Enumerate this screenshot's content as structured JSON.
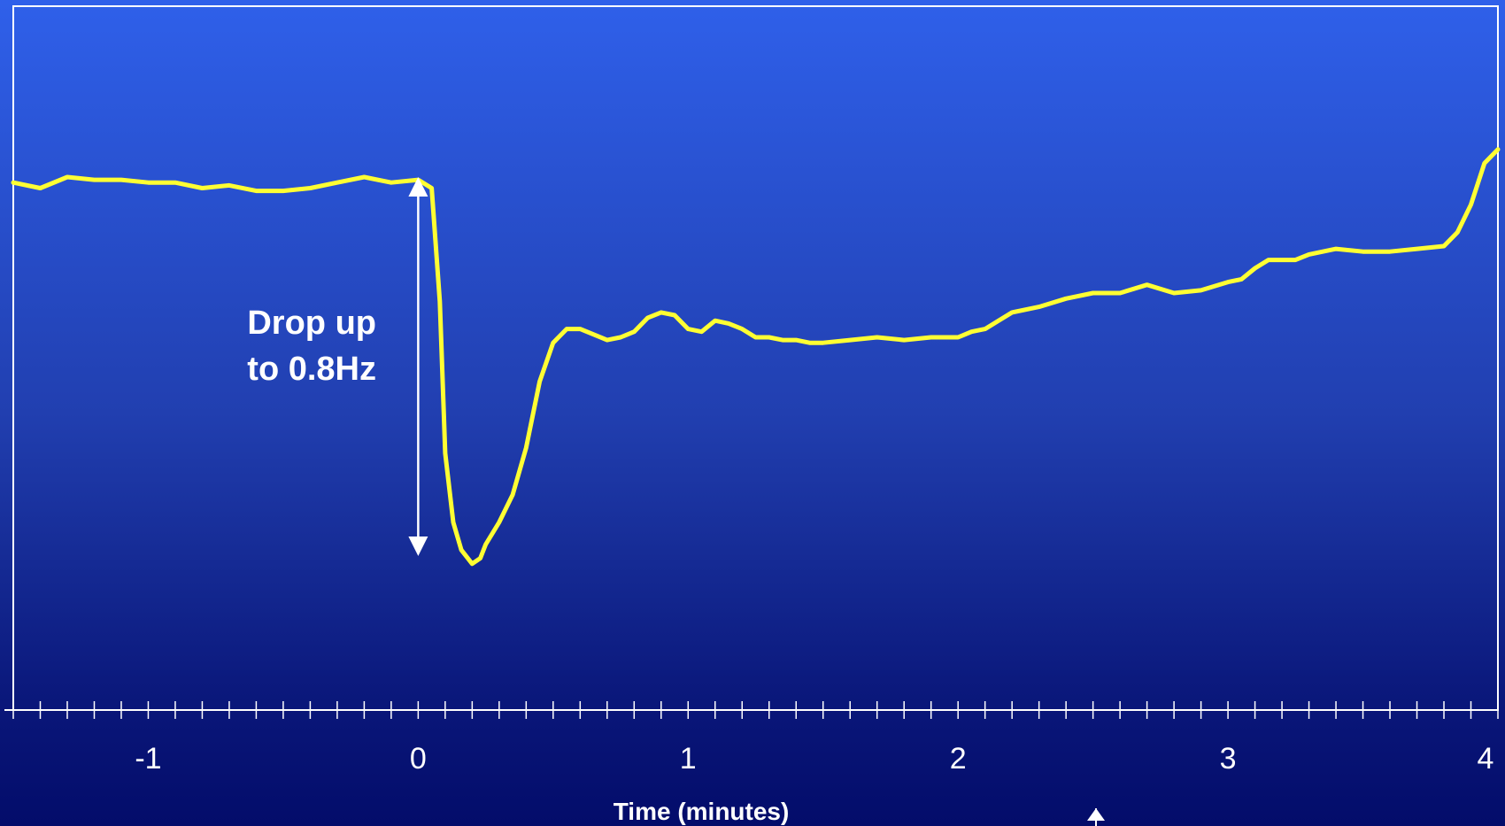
{
  "chart_data": {
    "type": "line",
    "title": "",
    "xlabel": "Time (minutes)",
    "ylabel": "",
    "xlim": [
      -1.5,
      4.0
    ],
    "x_ticks": [
      "-1",
      "0",
      "1",
      "2",
      "3",
      "4"
    ],
    "y_axis_shown": false,
    "grid": false,
    "legend": "none",
    "series": [
      {
        "color": "#ffff33",
        "x": [
          -1.5,
          -1.4,
          -1.3,
          -1.2,
          -1.1,
          -1.0,
          -0.9,
          -0.8,
          -0.7,
          -0.6,
          -0.5,
          -0.4,
          -0.3,
          -0.2,
          -0.1,
          0.0,
          0.05,
          0.08,
          0.1,
          0.13,
          0.16,
          0.2,
          0.23,
          0.25,
          0.3,
          0.35,
          0.4,
          0.45,
          0.5,
          0.55,
          0.6,
          0.65,
          0.7,
          0.75,
          0.8,
          0.85,
          0.9,
          0.95,
          1.0,
          1.05,
          1.1,
          1.15,
          1.2,
          1.25,
          1.3,
          1.35,
          1.4,
          1.45,
          1.5,
          1.6,
          1.7,
          1.8,
          1.9,
          2.0,
          2.05,
          2.1,
          2.15,
          2.2,
          2.3,
          2.4,
          2.5,
          2.6,
          2.7,
          2.8,
          2.9,
          3.0,
          3.05,
          3.1,
          3.15,
          3.2,
          3.25,
          3.3,
          3.4,
          3.5,
          3.6,
          3.7,
          3.8,
          3.85,
          3.9,
          3.95,
          4.0
        ],
        "y": [
          0.02,
          0.04,
          0.0,
          0.01,
          0.01,
          0.02,
          0.02,
          0.04,
          0.03,
          0.05,
          0.05,
          0.04,
          0.02,
          0.0,
          0.02,
          0.01,
          0.04,
          0.45,
          1.0,
          1.25,
          1.35,
          1.4,
          1.38,
          1.33,
          1.25,
          1.15,
          0.98,
          0.74,
          0.6,
          0.55,
          0.55,
          0.57,
          0.59,
          0.58,
          0.56,
          0.51,
          0.49,
          0.5,
          0.55,
          0.56,
          0.52,
          0.53,
          0.55,
          0.58,
          0.58,
          0.59,
          0.59,
          0.6,
          0.6,
          0.59,
          0.58,
          0.59,
          0.58,
          0.58,
          0.56,
          0.55,
          0.52,
          0.49,
          0.47,
          0.44,
          0.42,
          0.42,
          0.39,
          0.42,
          0.41,
          0.38,
          0.37,
          0.33,
          0.3,
          0.3,
          0.3,
          0.28,
          0.26,
          0.27,
          0.27,
          0.26,
          0.25,
          0.2,
          0.1,
          -0.05,
          -0.1
        ]
      }
    ],
    "annotation": {
      "line1": "Drop up",
      "line2": "to 0.8Hz",
      "arrow_x": 0.0
    }
  }
}
